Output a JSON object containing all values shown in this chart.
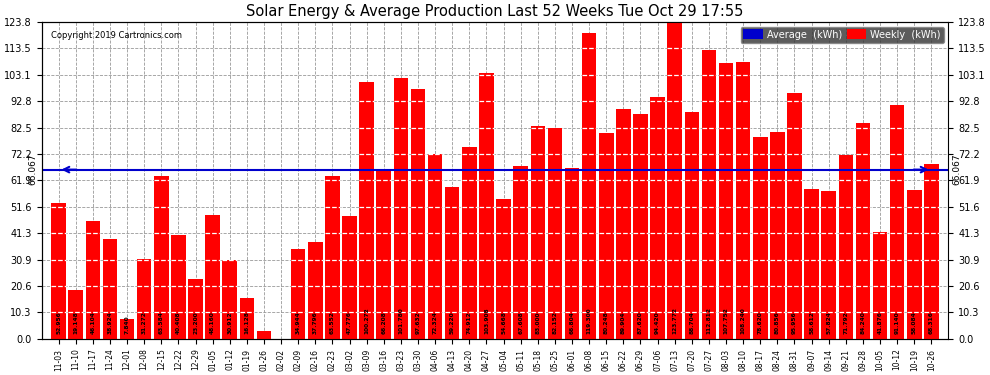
{
  "title": "Solar Energy & Average Production Last 52 Weeks Tue Oct 29 17:55",
  "copyright": "Copyright 2019 Cartronics.com",
  "average_line": 66.067,
  "bar_color": "#ff0000",
  "average_color": "#0000cc",
  "background_color": "#ffffff",
  "plot_bg_color": "#ffffff",
  "grid_color": "#999999",
  "ylim": [
    0.0,
    123.8
  ],
  "yticks": [
    0.0,
    10.3,
    20.6,
    30.9,
    41.3,
    51.6,
    61.9,
    72.2,
    82.5,
    92.8,
    103.1,
    113.5,
    123.8
  ],
  "legend_avg_color": "#0000cc",
  "legend_weekly_color": "#ff0000",
  "categories": [
    "11-03",
    "11-10",
    "11-17",
    "11-24",
    "12-01",
    "12-08",
    "12-15",
    "12-22",
    "12-29",
    "01-05",
    "01-12",
    "01-19",
    "01-26",
    "02-02",
    "02-09",
    "02-16",
    "02-23",
    "03-02",
    "03-09",
    "03-16",
    "03-23",
    "03-30",
    "04-06",
    "04-13",
    "04-20",
    "04-27",
    "05-04",
    "05-11",
    "05-18",
    "05-25",
    "06-01",
    "06-08",
    "06-15",
    "06-22",
    "06-29",
    "07-06",
    "07-13",
    "07-20",
    "07-27",
    "08-03",
    "08-10",
    "08-17",
    "08-24",
    "08-31",
    "09-07",
    "09-14",
    "09-21",
    "09-28",
    "10-05",
    "10-12",
    "10-19",
    "10-26"
  ],
  "values": [
    52.956,
    19.148,
    46.104,
    38.924,
    7.84,
    31.272,
    63.584,
    40.408,
    23.2,
    48.16,
    30.912,
    16.128,
    3.012,
    0.0,
    34.944,
    37.796,
    63.552,
    47.776,
    100.272,
    66.208,
    101.78,
    97.632,
    72.324,
    59.22,
    74.912,
    103.908,
    54.668,
    67.608,
    83.0,
    82.152,
    66.804,
    119.3,
    80.248,
    89.904,
    87.62,
    94.42,
    123.772,
    88.704,
    112.812,
    107.752,
    108.24,
    78.62,
    80.856,
    95.956,
    58.612,
    57.824,
    71.792,
    84.24,
    41.876,
    91.14,
    58.084,
    68.316
  ]
}
